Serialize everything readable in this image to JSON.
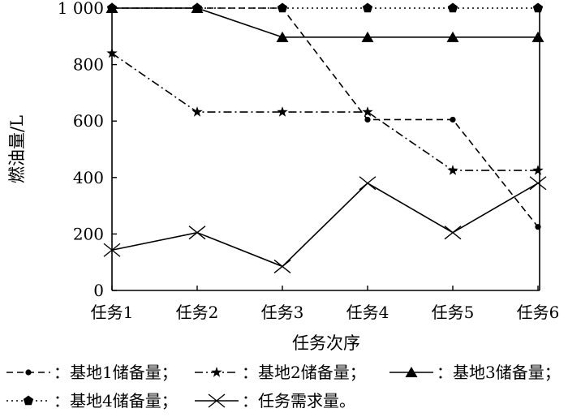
{
  "chart_data": {
    "type": "line",
    "xlabel": "任务次序",
    "ylabel": "燃油量/L",
    "ylim": [
      0,
      1000
    ],
    "yticks": [
      0,
      200,
      400,
      600,
      800,
      1000
    ],
    "ytick_labels": [
      "0",
      "200",
      "400",
      "600",
      "800",
      "1 000"
    ],
    "categories": [
      "任务1",
      "任务2",
      "任务3",
      "任务4",
      "任务5",
      "任务6"
    ],
    "grid": false,
    "legend_position": "bottom",
    "series": [
      {
        "name": "基地1储备量",
        "legend_label": "：基地1储备量；",
        "style": "dashed",
        "marker": "dot",
        "values": [
          1000,
          1000,
          1000,
          605,
          605,
          225
        ]
      },
      {
        "name": "基地2储备量",
        "legend_label": "：基地2储备量；",
        "style": "dashdot",
        "marker": "star",
        "values": [
          840,
          632,
          632,
          632,
          425,
          425
        ]
      },
      {
        "name": "基地3储备量",
        "legend_label": "：基地3储备量；",
        "style": "solid",
        "marker": "triangle",
        "values": [
          1000,
          1000,
          897,
          897,
          897,
          897
        ]
      },
      {
        "name": "基地4储备量",
        "legend_label": "：基地4储备量；",
        "style": "dotted",
        "marker": "pentagon",
        "values": [
          1000,
          1000,
          1000,
          1000,
          1000,
          1000
        ]
      },
      {
        "name": "任务需求量",
        "legend_label": "：任务需求量。",
        "style": "solid",
        "marker": "x",
        "values": [
          143,
          205,
          85,
          380,
          205,
          380
        ]
      }
    ]
  }
}
